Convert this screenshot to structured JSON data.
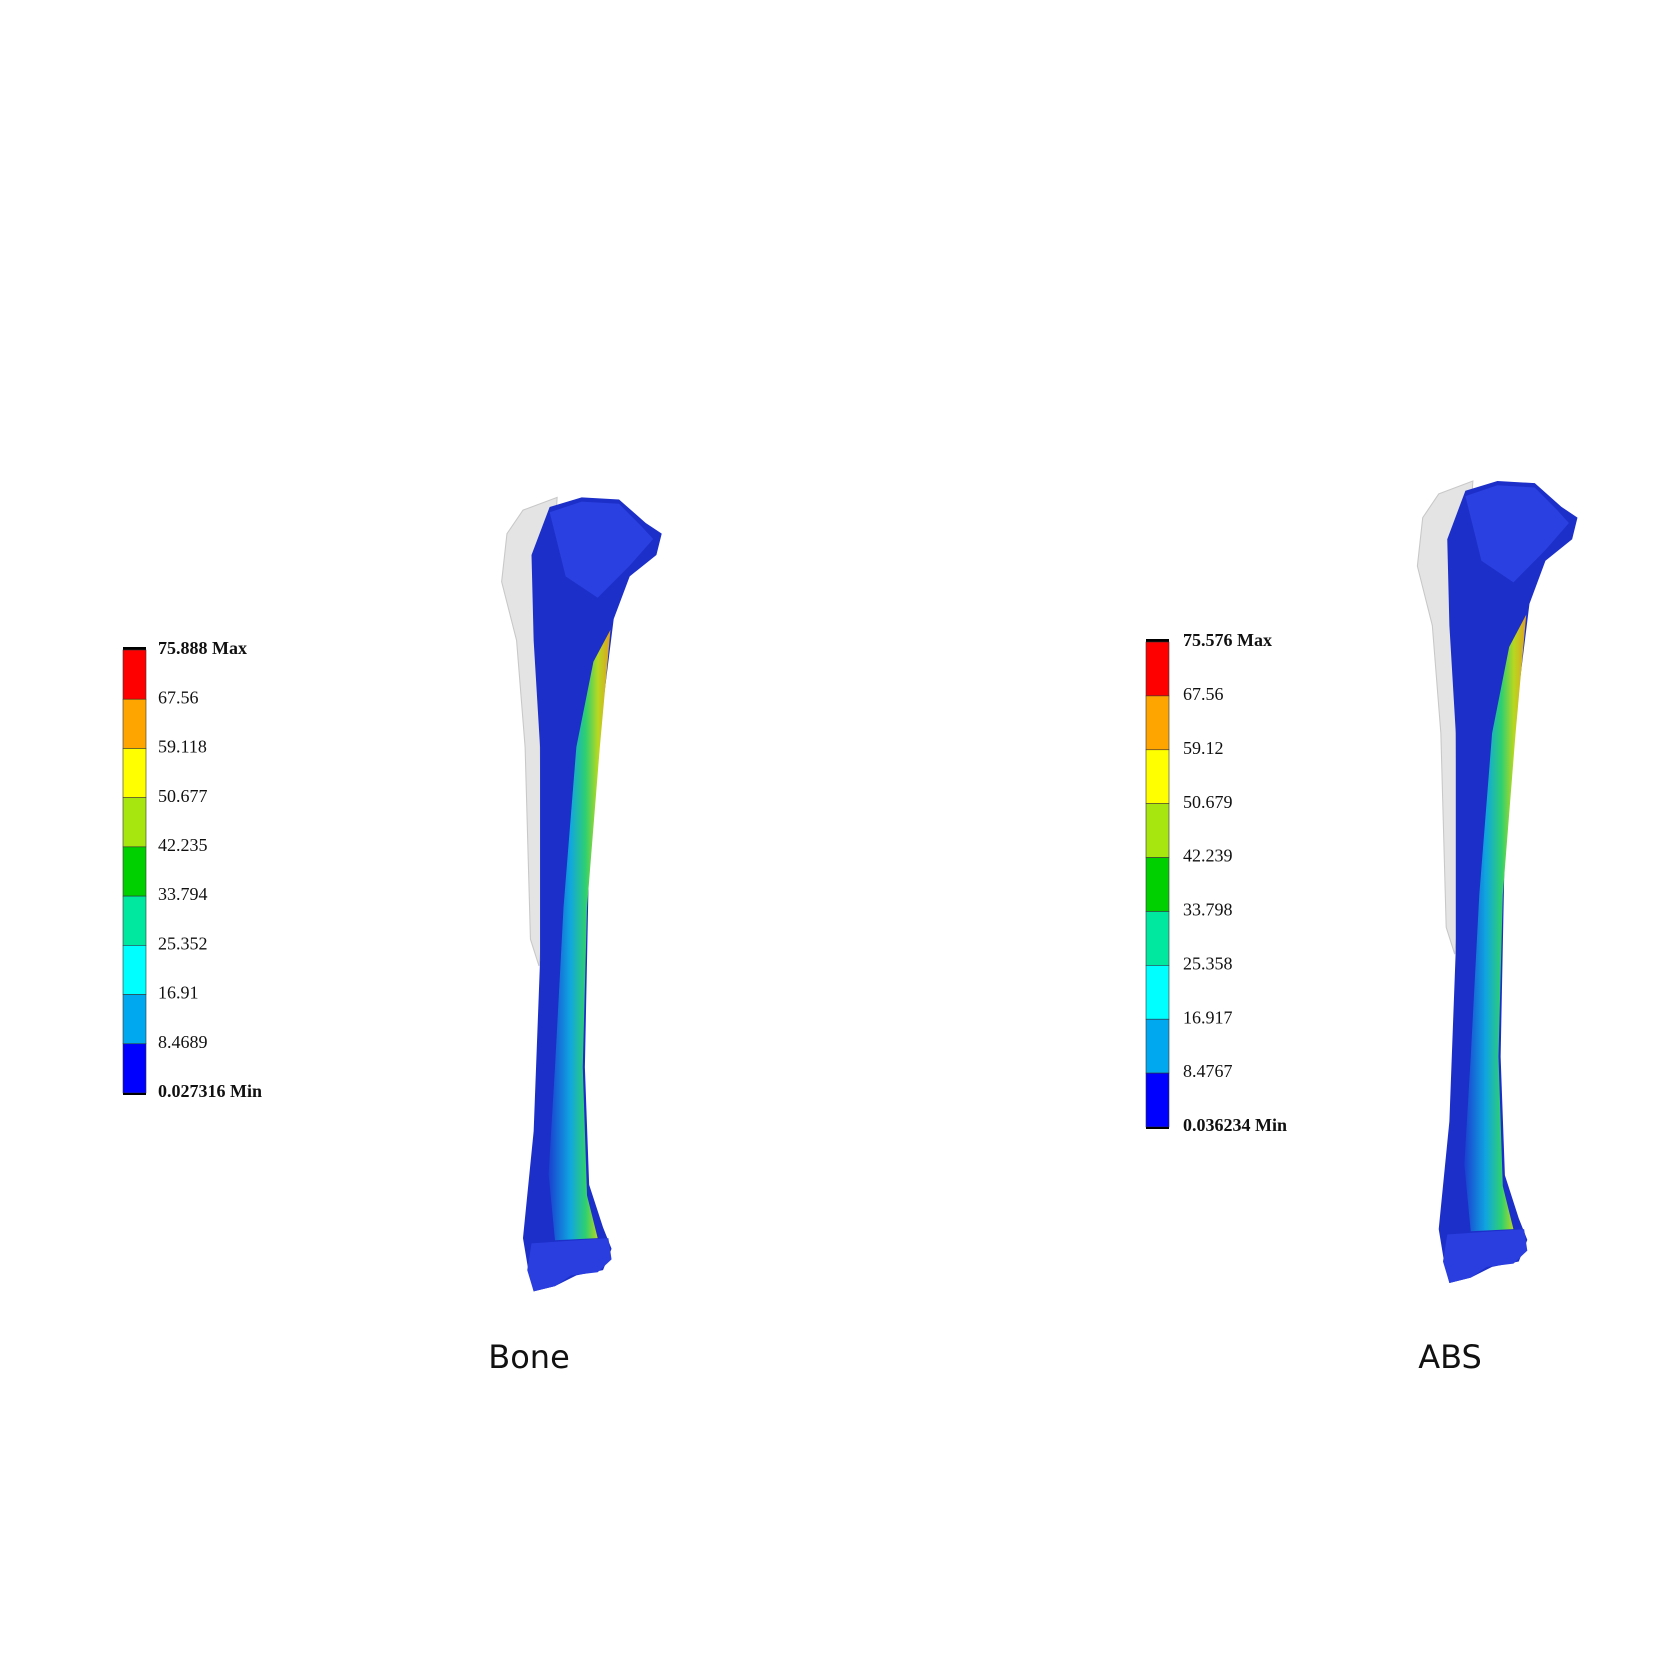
{
  "panels": [
    {
      "legend": {
        "labels": [
          "75.888 Max",
          "67.56",
          "59.118",
          "50.677",
          "42.235",
          "33.794",
          "25.352",
          "16.91",
          "8.4689",
          "0.027316 Min"
        ]
      },
      "caption": "Bone"
    },
    {
      "legend": {
        "labels": [
          "75.576 Max",
          "67.56",
          "59.12",
          "50.679",
          "42.239",
          "33.798",
          "25.358",
          "16.917",
          "8.4767",
          "0.036234 Min"
        ]
      },
      "caption": "ABS"
    }
  ]
}
